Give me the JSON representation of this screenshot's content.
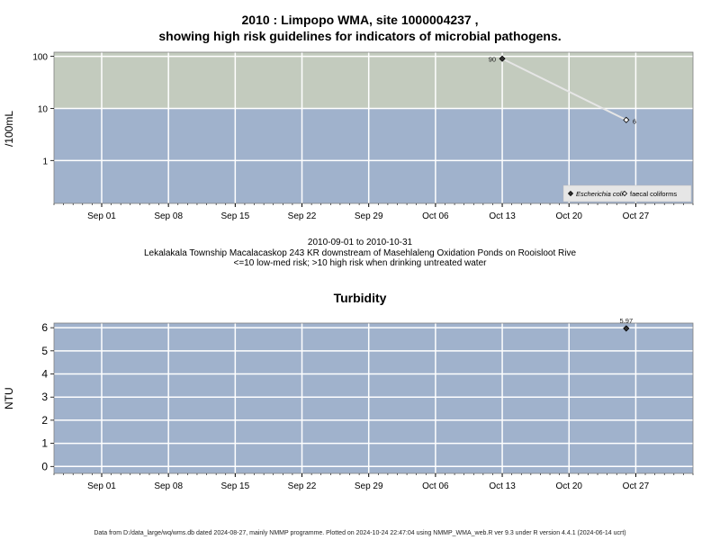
{
  "chart_title_line1": "2010 : Limpopo WMA, site 1000004237 ,",
  "chart_title_line2": "showing high risk guidelines for indicators of microbial pathogens.",
  "caption": {
    "date_range": "2010-09-01 to 2010-10-31",
    "site_description": "Lekalakala Township Macalacaskop 243 KR downstream of Masehlaleng Oxidation Ponds on Rooisloot Rive",
    "risk_note": "<=10 low-med risk; >10 high risk when drinking untreated water"
  },
  "footer": "Data from D:/data_large/wq/wms.db dated 2024-08-27, mainly NMMP programme. Plotted on 2024-10-24 22:47:04 using NMMP_WMA_web.R ver 9.3 under R version 4.4.1 (2024-06-14 ucrt)",
  "colors": {
    "high_risk": "#c3cbbe",
    "low_risk": "#a0b2cc",
    "panel_bg": "#a0b2cc",
    "grid": "#ffffff",
    "series_line": "#e6e6e6",
    "frame": "#808080"
  },
  "chart_data": [
    {
      "type": "scatter",
      "title": "",
      "ylabel": "/100mL",
      "y_scale": "log",
      "ylim": [
        0.15,
        120
      ],
      "yticks": [
        1,
        10,
        100
      ],
      "ytick_labels": [
        "1",
        "10",
        "100"
      ],
      "threshold": 10,
      "x_range": [
        "2010-08-27",
        "2010-11-02"
      ],
      "xticks": [
        "2010-09-01",
        "2010-09-08",
        "2010-09-15",
        "2010-09-22",
        "2010-09-29",
        "2010-10-06",
        "2010-10-13",
        "2010-10-20",
        "2010-10-27"
      ],
      "xtick_labels": [
        "Sep 01",
        "Sep 08",
        "Sep 15",
        "Sep 22",
        "Sep 29",
        "Oct 06",
        "Oct 13",
        "Oct 20",
        "Oct 27"
      ],
      "grid": true,
      "legend_position": "bottom-right",
      "series": [
        {
          "name": "Escherichia coli",
          "marker": "filled-diamond",
          "points": [
            {
              "x": "2010-10-13",
              "y": 90,
              "label": "90"
            }
          ]
        },
        {
          "name": "faecal coliforms",
          "marker": "open-diamond",
          "points": [
            {
              "x": "2010-10-26",
              "y": 6,
              "label": "6"
            }
          ]
        }
      ]
    },
    {
      "type": "scatter",
      "title": "Turbidity",
      "ylabel": "NTU",
      "y_scale": "linear",
      "ylim": [
        -0.3,
        6.2
      ],
      "yticks": [
        0,
        1,
        2,
        3,
        4,
        5,
        6
      ],
      "ytick_labels": [
        "0",
        "1",
        "2",
        "3",
        "4",
        "5",
        "6"
      ],
      "x_range": [
        "2010-08-27",
        "2010-11-02"
      ],
      "xticks": [
        "2010-09-01",
        "2010-09-08",
        "2010-09-15",
        "2010-09-22",
        "2010-09-29",
        "2010-10-06",
        "2010-10-13",
        "2010-10-20",
        "2010-10-27"
      ],
      "xtick_labels": [
        "Sep 01",
        "Sep 08",
        "Sep 15",
        "Sep 22",
        "Sep 29",
        "Oct 06",
        "Oct 13",
        "Oct 20",
        "Oct 27"
      ],
      "grid": true,
      "series": [
        {
          "marker": "filled-diamond",
          "points": [
            {
              "x": "2010-10-26",
              "y": 5.97,
              "label": "5.97"
            }
          ]
        }
      ]
    }
  ]
}
